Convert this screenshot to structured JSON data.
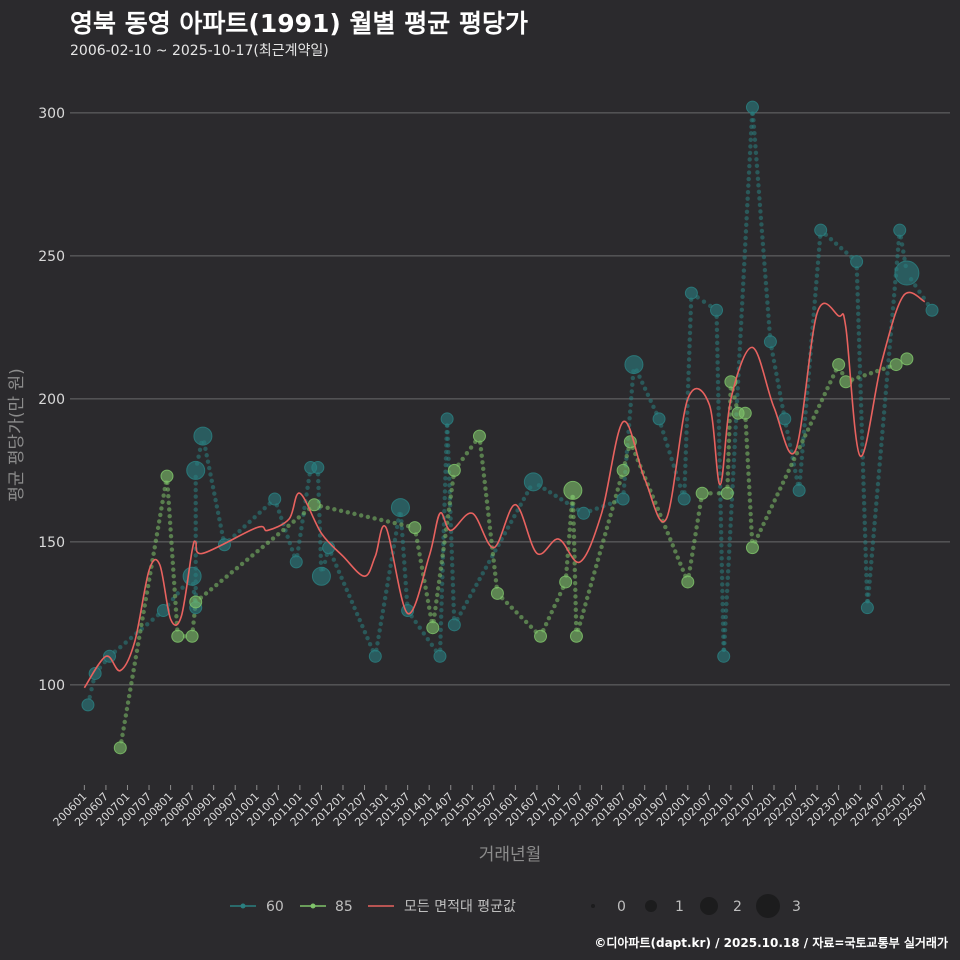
{
  "chart_data": {
    "type": "line",
    "title": "영북 동영 아파트(1991) 월별 평균 평당가",
    "subtitle": "2006-02-10 ~ 2025-10-17(최근계약일)",
    "xlabel": "거래년월",
    "ylabel": "평균 평당가(만 원)",
    "caption": "©디아파트(dapt.kr) / 2025.10.18 / 자료=국토교통부 실거래가",
    "ylim": [
      65,
      315
    ],
    "yticks": [
      100,
      150,
      200,
      250,
      300
    ],
    "xlim": [
      200601,
      202510
    ],
    "xticks": [
      "200601",
      "200607",
      "200701",
      "200707",
      "200801",
      "200807",
      "200901",
      "200907",
      "201001",
      "201007",
      "201101",
      "201107",
      "201201",
      "201207",
      "201301",
      "201307",
      "201401",
      "201407",
      "201501",
      "201507",
      "201601",
      "201607",
      "201701",
      "201707",
      "201801",
      "201807",
      "201901",
      "201907",
      "202001",
      "202007",
      "202101",
      "202107",
      "202201",
      "202207",
      "202301",
      "202307",
      "202401",
      "202407",
      "202501",
      "202507"
    ],
    "grid": true,
    "legend_position": "bottom",
    "series": [
      {
        "name": "60",
        "color": "#2a7f80",
        "points": [
          {
            "x": "200602",
            "y": 93,
            "n": 1
          },
          {
            "x": "200604",
            "y": 104,
            "n": 1
          },
          {
            "x": "200608",
            "y": 110,
            "n": 1
          },
          {
            "x": "200711",
            "y": 126,
            "n": 1
          },
          {
            "x": "200807",
            "y": 138,
            "n": 2
          },
          {
            "x": "200808",
            "y": 127,
            "n": 1
          },
          {
            "x": "200808",
            "y": 175,
            "n": 2
          },
          {
            "x": "200810",
            "y": 187,
            "n": 2
          },
          {
            "x": "200904",
            "y": 149,
            "n": 1
          },
          {
            "x": "201006",
            "y": 165,
            "n": 1
          },
          {
            "x": "201012",
            "y": 143,
            "n": 1
          },
          {
            "x": "201104",
            "y": 176,
            "n": 1
          },
          {
            "x": "201106",
            "y": 176,
            "n": 1
          },
          {
            "x": "201107",
            "y": 138,
            "n": 2
          },
          {
            "x": "201109",
            "y": 148,
            "n": 1
          },
          {
            "x": "201210",
            "y": 110,
            "n": 1
          },
          {
            "x": "201305",
            "y": 162,
            "n": 2
          },
          {
            "x": "201307",
            "y": 126,
            "n": 1
          },
          {
            "x": "201404",
            "y": 110,
            "n": 1
          },
          {
            "x": "201406",
            "y": 193,
            "n": 1
          },
          {
            "x": "201408",
            "y": 121,
            "n": 1
          },
          {
            "x": "201606",
            "y": 171,
            "n": 2
          },
          {
            "x": "201708",
            "y": 160,
            "n": 1
          },
          {
            "x": "201807",
            "y": 165,
            "n": 1
          },
          {
            "x": "201810",
            "y": 212,
            "n": 2
          },
          {
            "x": "201905",
            "y": 193,
            "n": 1
          },
          {
            "x": "201912",
            "y": 165,
            "n": 1
          },
          {
            "x": "202002",
            "y": 237,
            "n": 1
          },
          {
            "x": "202009",
            "y": 231,
            "n": 1
          },
          {
            "x": "202011",
            "y": 110,
            "n": 1
          },
          {
            "x": "202107",
            "y": 302,
            "n": 1
          },
          {
            "x": "202112",
            "y": 220,
            "n": 1
          },
          {
            "x": "202204",
            "y": 193,
            "n": 1
          },
          {
            "x": "202208",
            "y": 168,
            "n": 1
          },
          {
            "x": "202302",
            "y": 259,
            "n": 1
          },
          {
            "x": "202312",
            "y": 248,
            "n": 1
          },
          {
            "x": "202403",
            "y": 127,
            "n": 1
          },
          {
            "x": "202412",
            "y": 259,
            "n": 1
          },
          {
            "x": "202502",
            "y": 244,
            "n": 3
          },
          {
            "x": "202509",
            "y": 231,
            "n": 1
          }
        ]
      },
      {
        "name": "85",
        "color": "#7fc36a",
        "points": [
          {
            "x": "200611",
            "y": 78,
            "n": 1
          },
          {
            "x": "200712",
            "y": 173,
            "n": 1
          },
          {
            "x": "200803",
            "y": 117,
            "n": 1
          },
          {
            "x": "200807",
            "y": 117,
            "n": 1
          },
          {
            "x": "200808",
            "y": 129,
            "n": 1
          },
          {
            "x": "201105",
            "y": 163,
            "n": 1
          },
          {
            "x": "201309",
            "y": 155,
            "n": 1
          },
          {
            "x": "201402",
            "y": 120,
            "n": 1
          },
          {
            "x": "201408",
            "y": 175,
            "n": 1
          },
          {
            "x": "201503",
            "y": 187,
            "n": 1
          },
          {
            "x": "201508",
            "y": 132,
            "n": 1
          },
          {
            "x": "201608",
            "y": 117,
            "n": 1
          },
          {
            "x": "201703",
            "y": 136,
            "n": 1
          },
          {
            "x": "201705",
            "y": 168,
            "n": 2
          },
          {
            "x": "201706",
            "y": 117,
            "n": 1
          },
          {
            "x": "201807",
            "y": 175,
            "n": 1
          },
          {
            "x": "201809",
            "y": 185,
            "n": 1
          },
          {
            "x": "202001",
            "y": 136,
            "n": 1
          },
          {
            "x": "202005",
            "y": 167,
            "n": 1
          },
          {
            "x": "202012",
            "y": 167,
            "n": 1
          },
          {
            "x": "202101",
            "y": 206,
            "n": 1
          },
          {
            "x": "202103",
            "y": 195,
            "n": 1
          },
          {
            "x": "202105",
            "y": 195,
            "n": 1
          },
          {
            "x": "202107",
            "y": 148,
            "n": 1
          },
          {
            "x": "202307",
            "y": 212,
            "n": 1
          },
          {
            "x": "202309",
            "y": 206,
            "n": 1
          },
          {
            "x": "202411",
            "y": 212,
            "n": 1
          },
          {
            "x": "202502",
            "y": 214,
            "n": 1
          }
        ]
      },
      {
        "name": "모든 면적대 평균값",
        "color": "#e8625f",
        "points": [
          {
            "x": "200601",
            "y": 99
          },
          {
            "x": "200607",
            "y": 110
          },
          {
            "x": "200611",
            "y": 105
          },
          {
            "x": "200703",
            "y": 115
          },
          {
            "x": "200707",
            "y": 140
          },
          {
            "x": "200710",
            "y": 142
          },
          {
            "x": "200801",
            "y": 123
          },
          {
            "x": "200804",
            "y": 124
          },
          {
            "x": "200807",
            "y": 147
          },
          {
            "x": "200808",
            "y": 150
          },
          {
            "x": "200810",
            "y": 146
          },
          {
            "x": "201001",
            "y": 155
          },
          {
            "x": "201004",
            "y": 154
          },
          {
            "x": "201010",
            "y": 158
          },
          {
            "x": "201101",
            "y": 167
          },
          {
            "x": "201107",
            "y": 153
          },
          {
            "x": "201201",
            "y": 145
          },
          {
            "x": "201207",
            "y": 138
          },
          {
            "x": "201210",
            "y": 145
          },
          {
            "x": "201301",
            "y": 155
          },
          {
            "x": "201307",
            "y": 125
          },
          {
            "x": "201401",
            "y": 145
          },
          {
            "x": "201404",
            "y": 160
          },
          {
            "x": "201407",
            "y": 154
          },
          {
            "x": "201501",
            "y": 160
          },
          {
            "x": "201507",
            "y": 148
          },
          {
            "x": "201601",
            "y": 163
          },
          {
            "x": "201607",
            "y": 146
          },
          {
            "x": "201701",
            "y": 151
          },
          {
            "x": "201707",
            "y": 143
          },
          {
            "x": "201801",
            "y": 160
          },
          {
            "x": "201807",
            "y": 192
          },
          {
            "x": "201901",
            "y": 172
          },
          {
            "x": "201907",
            "y": 158
          },
          {
            "x": "202001",
            "y": 200
          },
          {
            "x": "202007",
            "y": 198
          },
          {
            "x": "202010",
            "y": 170
          },
          {
            "x": "202101",
            "y": 200
          },
          {
            "x": "202107",
            "y": 218
          },
          {
            "x": "202201",
            "y": 197
          },
          {
            "x": "202207",
            "y": 182
          },
          {
            "x": "202301",
            "y": 230
          },
          {
            "x": "202307",
            "y": 229
          },
          {
            "x": "202309",
            "y": 225
          },
          {
            "x": "202401",
            "y": 180
          },
          {
            "x": "202407",
            "y": 213
          },
          {
            "x": "202501",
            "y": 236
          },
          {
            "x": "202507",
            "y": 234
          }
        ]
      }
    ],
    "size_legend": {
      "values": [
        "0",
        "1",
        "2",
        "3"
      ]
    }
  }
}
